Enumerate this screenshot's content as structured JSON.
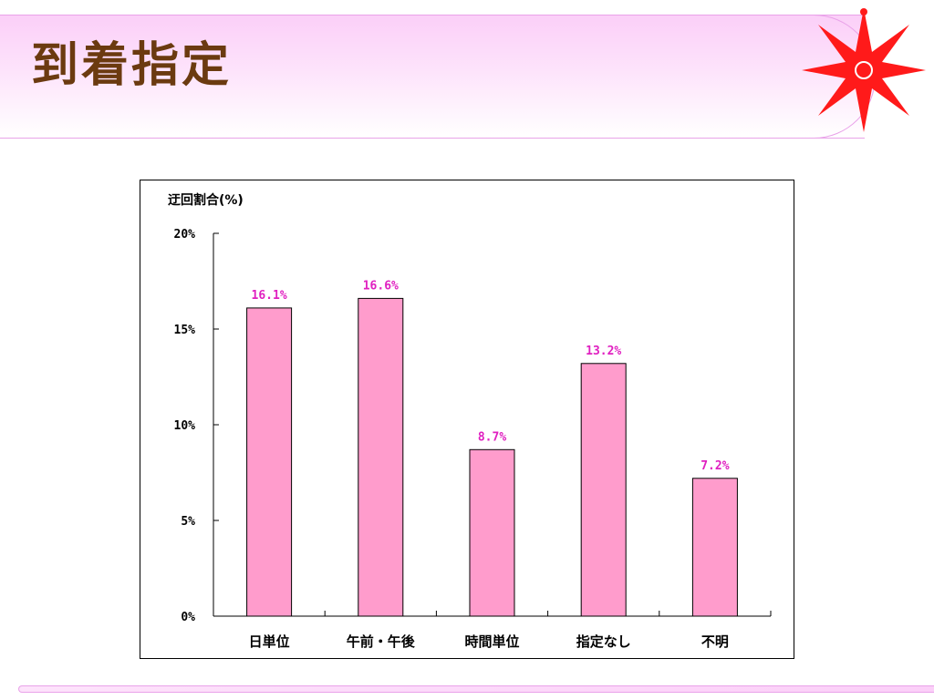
{
  "slide": {
    "title": "到着指定"
  },
  "colors": {
    "title_text": "#6b3a10",
    "title_band": "#fbcff8",
    "bar_fill": "#ff9ccc",
    "value_label": "#e020c0",
    "compass": "#ff1a1a"
  },
  "icons": {
    "compass": "compass-star-icon"
  },
  "chart_data": {
    "type": "bar",
    "title": "",
    "ylabel": "迂回割合(%)",
    "xlabel": "",
    "categories": [
      "日単位",
      "午前・午後",
      "時間単位",
      "指定なし",
      "不明"
    ],
    "values": [
      16.1,
      16.6,
      8.7,
      13.2,
      7.2
    ],
    "value_labels": [
      "16.1%",
      "16.6%",
      "8.7%",
      "13.2%",
      "7.2%"
    ],
    "ylim": [
      0,
      20
    ],
    "yticks": [
      0,
      5,
      10,
      15,
      20
    ],
    "ytick_labels": [
      "0%",
      "5%",
      "10%",
      "15%",
      "20%"
    ],
    "grid": false,
    "legend": "none"
  }
}
